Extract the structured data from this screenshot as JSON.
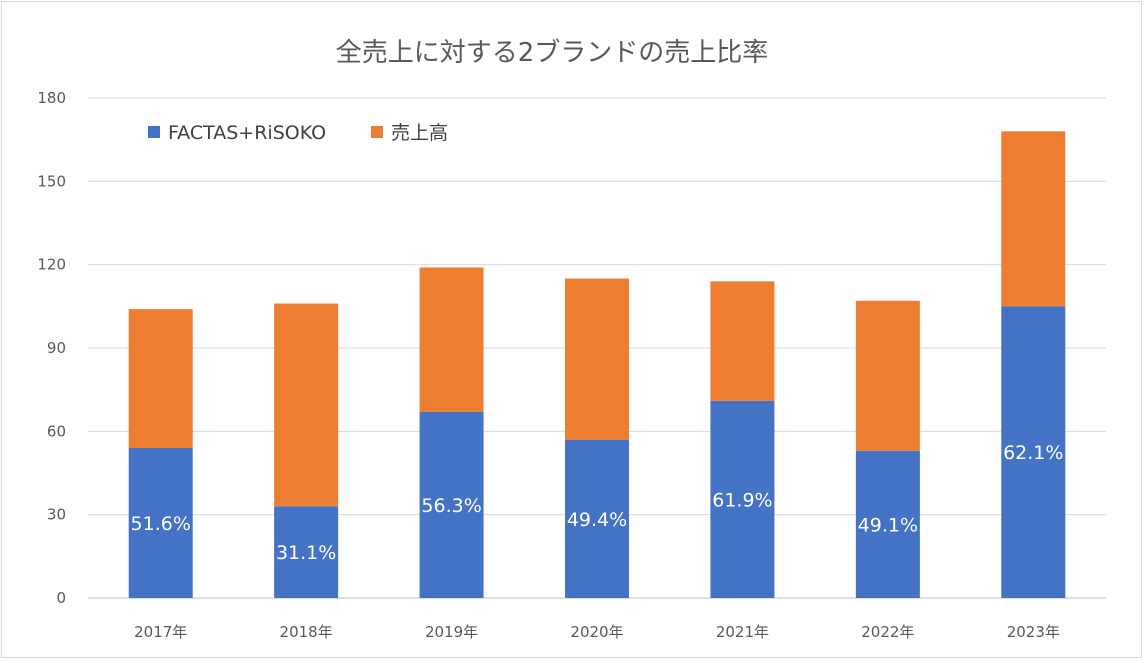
{
  "chart_data": {
    "type": "bar",
    "stacked": true,
    "title": "全売上に対する2ブランドの売上比率",
    "xlabel": "",
    "ylabel": "",
    "ylim": [
      0,
      180
    ],
    "yticks": [
      0,
      30,
      60,
      90,
      120,
      150,
      180
    ],
    "grid": true,
    "legend_position": "top-left",
    "categories": [
      "2017年",
      "2018年",
      "2019年",
      "2020年",
      "2021年",
      "2022年",
      "2023年"
    ],
    "series": [
      {
        "name": "FACTAS+RiSOKO",
        "color": "#4472c4",
        "values": [
          54,
          33,
          67,
          57,
          71,
          53,
          105
        ],
        "labels": [
          "51.6%",
          "31.1%",
          "56.3%",
          "49.4%",
          "61.9%",
          "49.1%",
          "62.1%"
        ]
      },
      {
        "name": "売上高",
        "color": "#ed7d31",
        "values": [
          50,
          73,
          52,
          58,
          43,
          54,
          63
        ]
      }
    ]
  }
}
